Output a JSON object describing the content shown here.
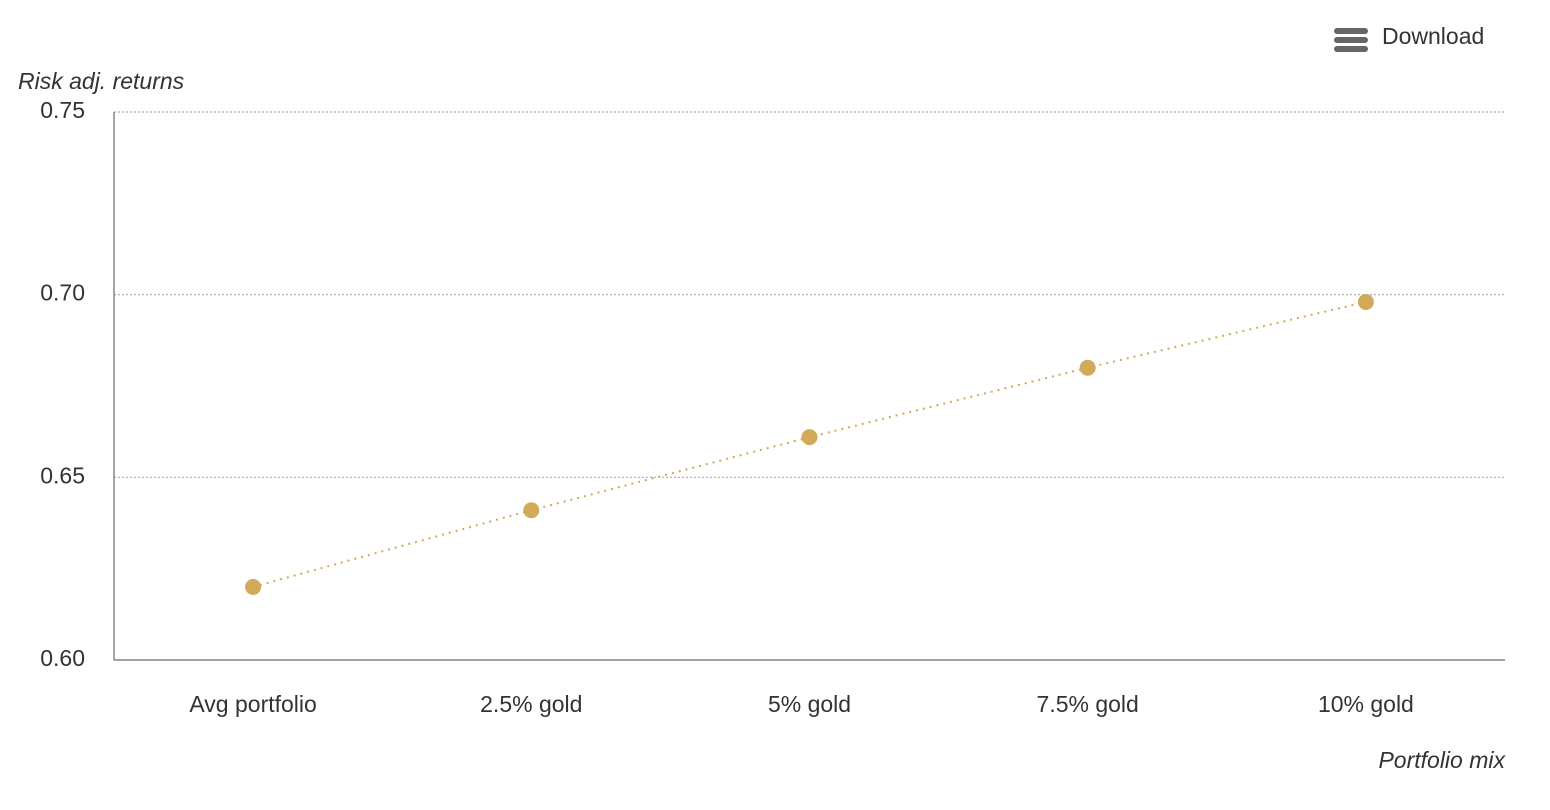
{
  "toolbar": {
    "download": "Download"
  },
  "chart_data": {
    "type": "line",
    "y_axis_label": "Risk adj. returns",
    "x_axis_label": "Portfolio mix",
    "categories": [
      "Avg portfolio",
      "2.5% gold",
      "5% gold",
      "7.5% gold",
      "10% gold"
    ],
    "values": [
      0.62,
      0.641,
      0.661,
      0.68,
      0.698
    ],
    "color": "#d1ab5a",
    "ylim": [
      0.6,
      0.75
    ],
    "yticks": [
      {
        "value": 0.6,
        "label": "0.60"
      },
      0.65,
      {
        "value": 0.7,
        "label": "0.70"
      },
      0.75
    ],
    "grid": true
  }
}
